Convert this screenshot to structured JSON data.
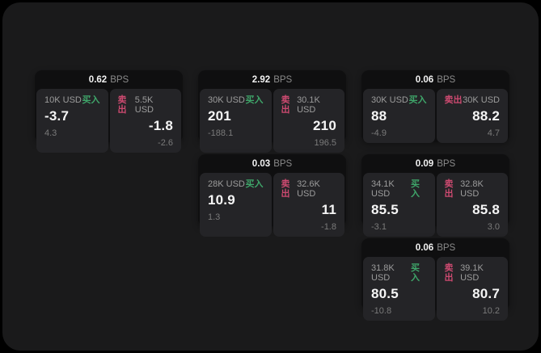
{
  "theme": {
    "background": "#000000",
    "surface": "#1a1a1b",
    "card_bg": "#0f0f10",
    "panel_bg": "#242427",
    "buy_color": "#3fa66a",
    "sell_color": "#cc4a70",
    "text_primary": "#f5f5f5",
    "text_muted": "#8b8b8b"
  },
  "labels": {
    "bps_unit": "BPS",
    "buy": "买入",
    "sell": "卖出"
  },
  "cards": [
    {
      "row": 1,
      "col": 1,
      "bps": "0.62",
      "buy": {
        "amount": "10K USD",
        "price": "-3.7",
        "sub_value": "4.3"
      },
      "sell": {
        "amount": "5.5K USD",
        "price": "-1.8",
        "sub_value": "-2.6"
      }
    },
    {
      "row": 1,
      "col": 2,
      "bps": "2.92",
      "buy": {
        "amount": "30K USD",
        "price": "201",
        "sub_value": "-188.1"
      },
      "sell": {
        "amount": "30.1K USD",
        "price": "210",
        "sub_value": "196.5"
      }
    },
    {
      "row": 1,
      "col": 3,
      "bps": "0.06",
      "buy": {
        "amount": "30K USD",
        "price": "88",
        "sub_value": "-4.9"
      },
      "sell": {
        "amount": "30K USD",
        "price": "88.2",
        "sub_value": "4.7"
      }
    },
    {
      "row": 2,
      "col": 2,
      "bps": "0.03",
      "buy": {
        "amount": "28K USD",
        "price": "10.9",
        "sub_value": "1.3"
      },
      "sell": {
        "amount": "32.6K USD",
        "price": "11",
        "sub_value": "-1.8"
      }
    },
    {
      "row": 2,
      "col": 3,
      "bps": "0.09",
      "buy": {
        "amount": "34.1K USD",
        "price": "85.5",
        "sub_value": "-3.1"
      },
      "sell": {
        "amount": "32.8K USD",
        "price": "85.8",
        "sub_value": "3.0"
      }
    },
    {
      "row": 3,
      "col": 3,
      "bps": "0.06",
      "buy": {
        "amount": "31.8K USD",
        "price": "80.5",
        "sub_value": "-10.8"
      },
      "sell": {
        "amount": "39.1K USD",
        "price": "80.7",
        "sub_value": "10.2"
      }
    }
  ]
}
